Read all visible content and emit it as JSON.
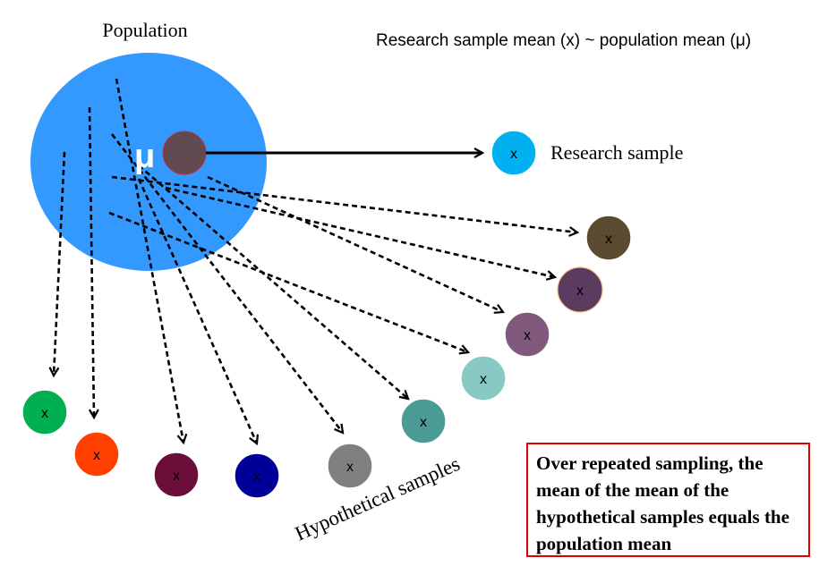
{
  "labels": {
    "population": "Population",
    "header": "Research sample mean (x) ~ population mean (μ)",
    "mu": "μ",
    "research_sample": "Research sample",
    "hypothetical_samples": "Hypothetical samples",
    "sample_mark": "x"
  },
  "note": {
    "text": "Over repeated sampling, the mean of the mean of the hypothetical samples equals the population mean"
  },
  "colors": {
    "population": "#3399ff",
    "mu_circle": "#604a4f",
    "research_sample": "#00b0f0",
    "note_border": "#e00000"
  },
  "hypothetical_samples": [
    {
      "id": "green",
      "color": "#00b050"
    },
    {
      "id": "orange-red",
      "color": "#ff4000"
    },
    {
      "id": "maroon",
      "color": "#6b0f3a"
    },
    {
      "id": "navy",
      "color": "#000099"
    },
    {
      "id": "gray",
      "color": "#808080"
    },
    {
      "id": "teal",
      "color": "#4a9a96"
    },
    {
      "id": "light-teal",
      "color": "#88c9c3"
    },
    {
      "id": "mauve",
      "color": "#81597d"
    },
    {
      "id": "plum",
      "color": "#5b3b5f"
    },
    {
      "id": "brown",
      "color": "#5a4a30"
    }
  ]
}
